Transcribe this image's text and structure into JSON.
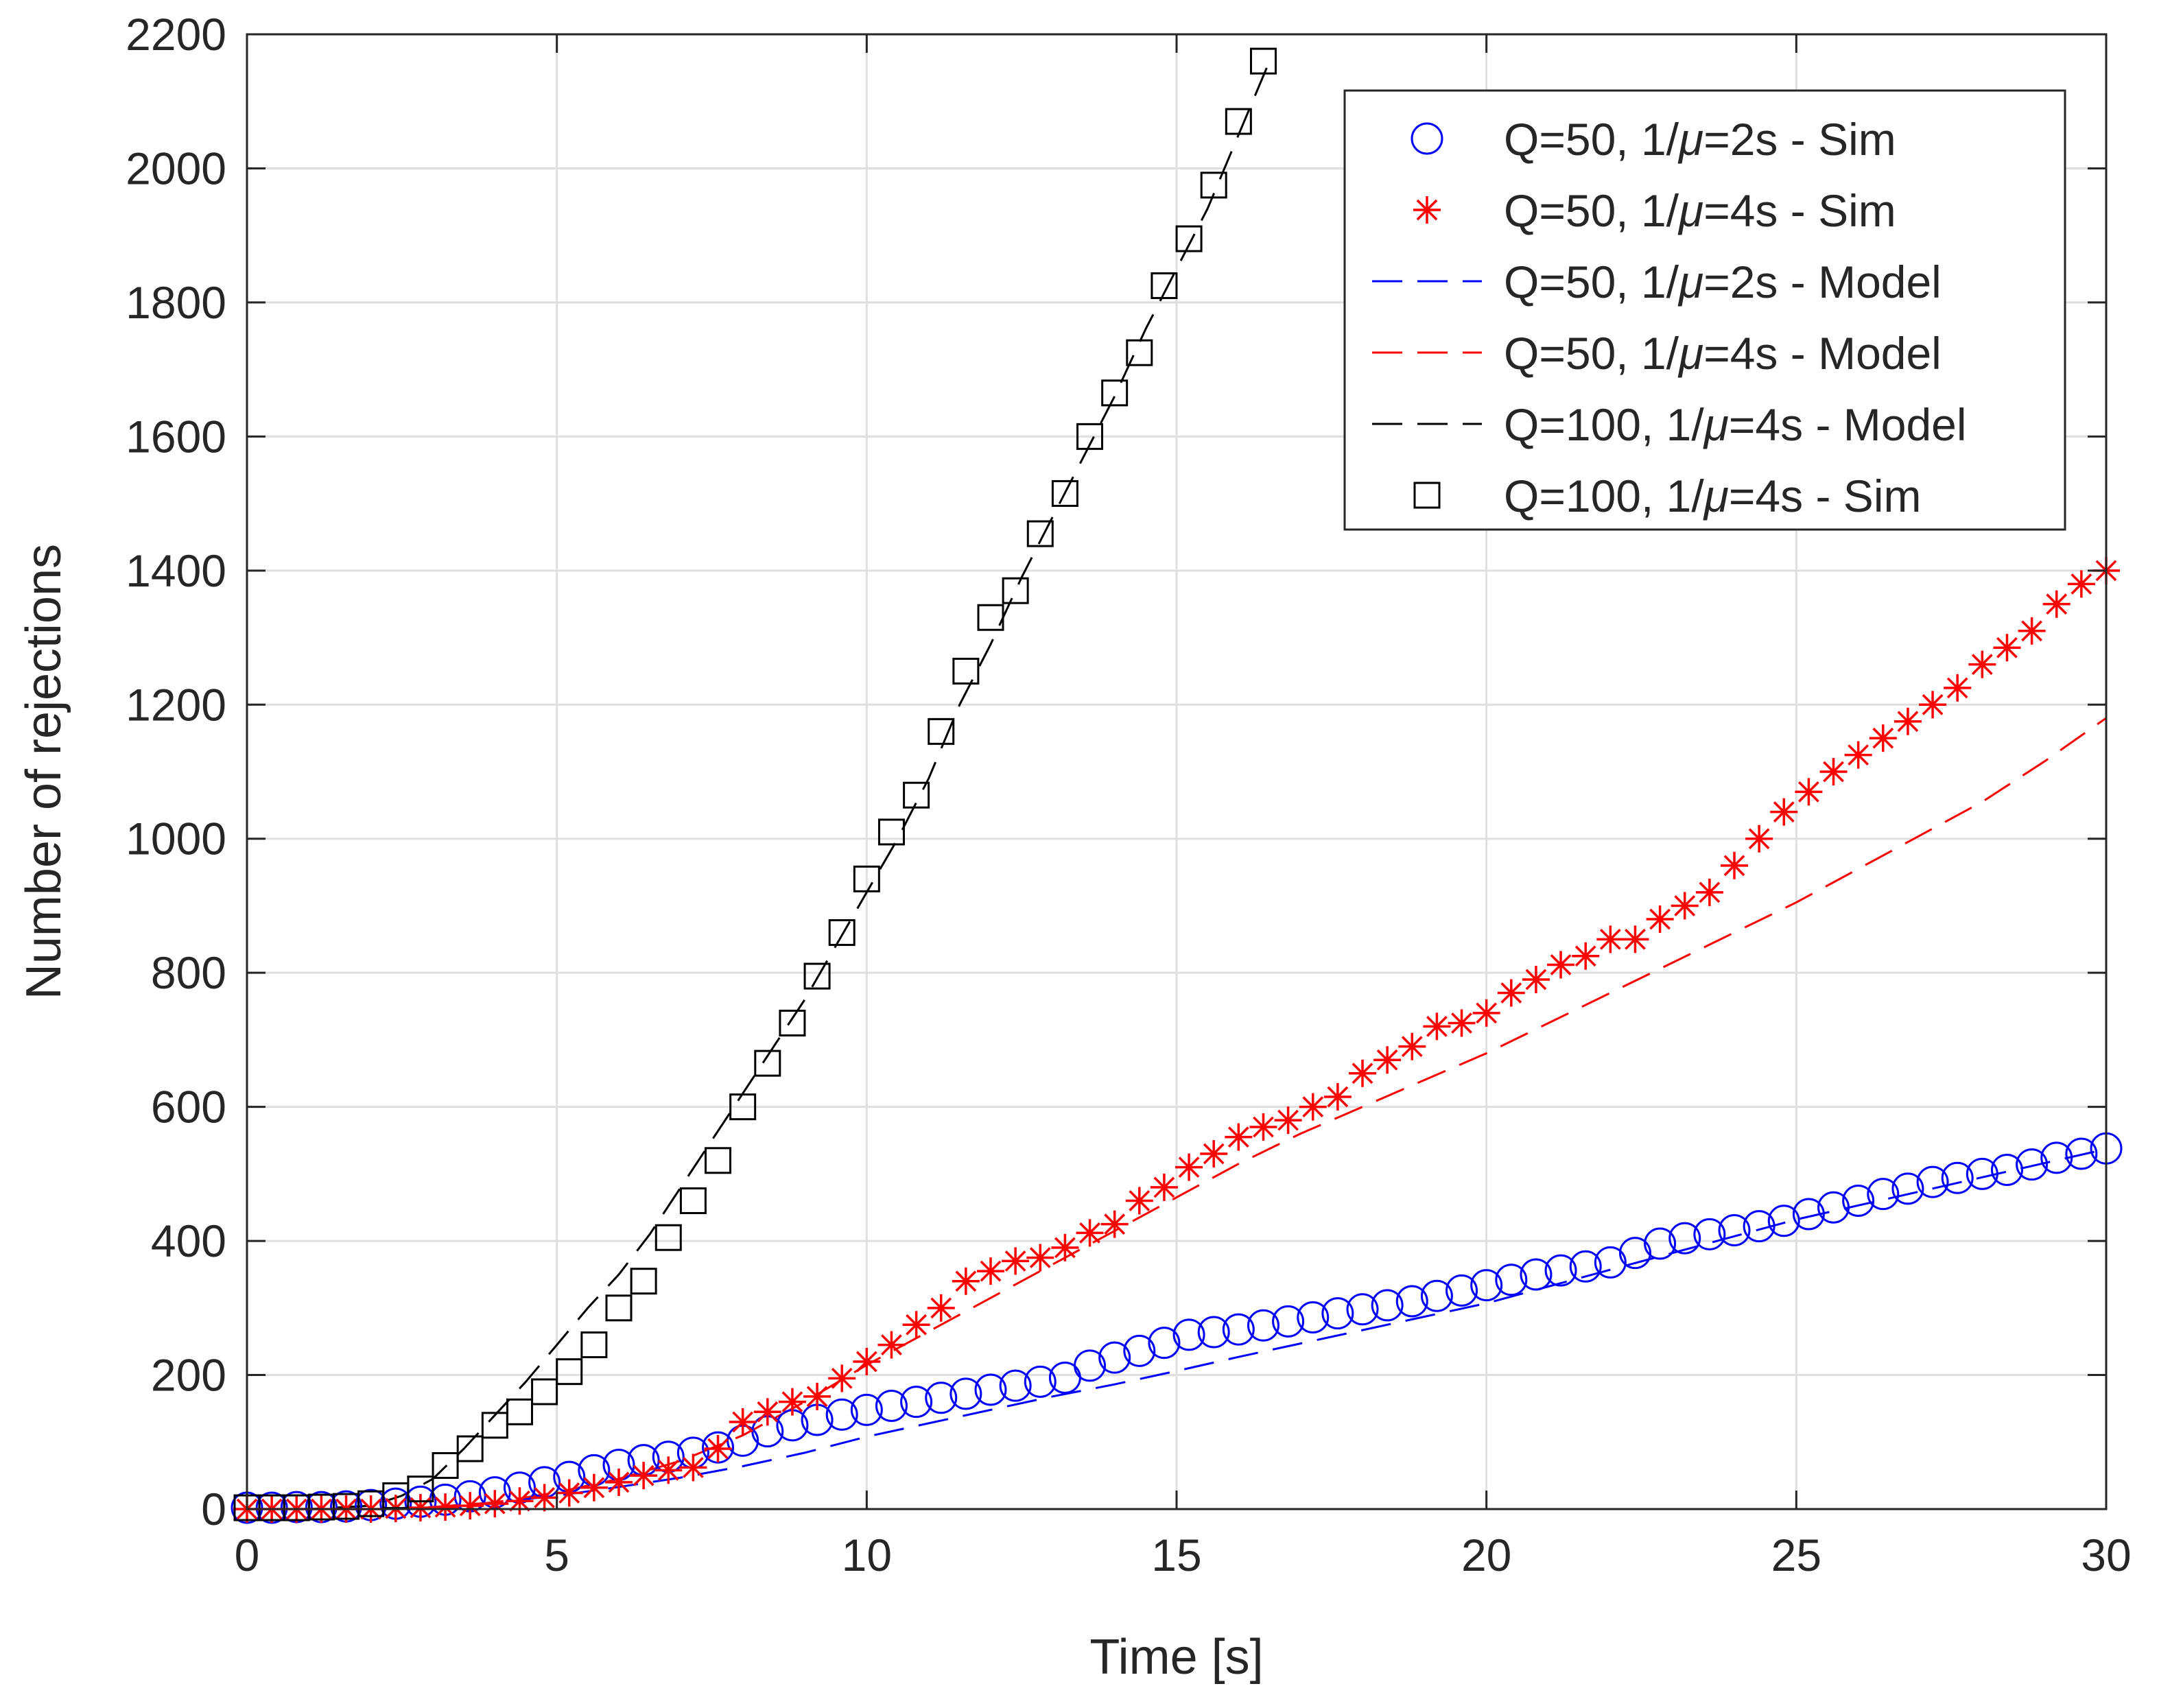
{
  "chart_data": {
    "type": "line",
    "title": "",
    "xlabel": "Time [s]",
    "ylabel": "Number of rejections",
    "xlim": [
      0,
      30
    ],
    "ylim": [
      0,
      2200
    ],
    "xticks": [
      0,
      5,
      10,
      15,
      20,
      25,
      30
    ],
    "yticks": [
      0,
      200,
      400,
      600,
      800,
      1000,
      1200,
      1400,
      1600,
      1800,
      2000,
      2200
    ],
    "grid": true,
    "legend_position": "top-right",
    "series": [
      {
        "name": "Q=50, 1/μ=2s - Sim",
        "label_prefix": "Q=50, 1/",
        "label_suffix": "=2s - Sim",
        "style": "circle",
        "color": "#0000ff",
        "x": [
          0,
          0.4,
          0.8,
          1.2,
          1.6,
          2.0,
          2.4,
          2.8,
          3.2,
          3.6,
          4.0,
          4.4,
          4.8,
          5.2,
          5.6,
          6.0,
          6.4,
          6.8,
          7.2,
          7.6,
          8.0,
          8.4,
          8.8,
          9.2,
          9.6,
          10.0,
          10.4,
          10.8,
          11.2,
          11.6,
          12.0,
          12.4,
          12.8,
          13.2,
          13.6,
          14.0,
          14.4,
          14.8,
          15.2,
          15.6,
          16.0,
          16.4,
          16.8,
          17.2,
          17.6,
          18.0,
          18.4,
          18.8,
          19.2,
          19.6,
          20.0,
          20.4,
          20.8,
          21.2,
          21.6,
          22.0,
          22.4,
          22.8,
          23.2,
          23.6,
          24.0,
          24.4,
          24.8,
          25.2,
          25.6,
          26.0,
          26.4,
          26.8,
          27.2,
          27.6,
          28.0,
          28.4,
          28.8,
          29.2,
          29.6,
          30.0
        ],
        "y": [
          2,
          2,
          3,
          3,
          4,
          6,
          8,
          11,
          14,
          19,
          25,
          32,
          40,
          48,
          58,
          66,
          73,
          78,
          84,
          92,
          102,
          116,
          125,
          133,
          141,
          148,
          154,
          160,
          166,
          172,
          178,
          184,
          190,
          196,
          214,
          226,
          236,
          248,
          260,
          264,
          268,
          274,
          280,
          286,
          292,
          298,
          304,
          310,
          318,
          326,
          334,
          342,
          350,
          356,
          362,
          368,
          382,
          396,
          404,
          410,
          416,
          422,
          430,
          440,
          450,
          460,
          470,
          478,
          488,
          494,
          500,
          506,
          514,
          524,
          530,
          538
        ]
      },
      {
        "name": "Q=50, 1/μ=4s - Sim",
        "label_prefix": "Q=50, 1/",
        "label_suffix": "=4s - Sim",
        "style": "asterisk",
        "color": "#ff0000",
        "x": [
          0,
          0.4,
          0.8,
          1.2,
          1.6,
          2.0,
          2.4,
          2.8,
          3.2,
          3.6,
          4.0,
          4.4,
          4.8,
          5.2,
          5.6,
          6.0,
          6.4,
          6.8,
          7.2,
          7.6,
          8.0,
          8.4,
          8.8,
          9.2,
          9.6,
          10.0,
          10.4,
          10.8,
          11.2,
          11.6,
          12.0,
          12.4,
          12.8,
          13.2,
          13.6,
          14.0,
          14.4,
          14.8,
          15.2,
          15.6,
          16.0,
          16.4,
          16.8,
          17.2,
          17.6,
          18.0,
          18.4,
          18.8,
          19.2,
          19.6,
          20.0,
          20.4,
          20.8,
          21.2,
          21.6,
          22.0,
          22.4,
          22.8,
          23.2,
          23.6,
          24.0,
          24.4,
          24.8,
          25.2,
          25.6,
          26.0,
          26.4,
          26.8,
          27.2,
          27.6,
          28.0,
          28.4,
          28.8,
          29.2,
          29.6,
          30.0
        ],
        "y": [
          0,
          0,
          0,
          0,
          0,
          0,
          1,
          2,
          3,
          5,
          8,
          12,
          17,
          24,
          32,
          40,
          50,
          58,
          62,
          90,
          130,
          145,
          160,
          168,
          195,
          220,
          245,
          275,
          300,
          340,
          355,
          370,
          375,
          390,
          412,
          425,
          460,
          480,
          510,
          530,
          555,
          570,
          580,
          600,
          615,
          650,
          670,
          690,
          720,
          725,
          740,
          770,
          790,
          812,
          825,
          850,
          850,
          880,
          900,
          920,
          960,
          1000,
          1040,
          1070,
          1100,
          1125,
          1150,
          1175,
          1200,
          1225,
          1260,
          1285,
          1310,
          1350,
          1380,
          1400
        ]
      },
      {
        "name": "Q=50, 1/μ=2s - Model",
        "label_prefix": "Q=50, 1/",
        "label_suffix": "=2s - Model",
        "style": "dashed",
        "color": "#0000ff",
        "x": [
          0,
          1,
          2,
          3,
          4,
          5,
          6,
          7,
          8,
          9,
          10,
          11,
          12,
          13,
          14,
          15,
          16,
          17,
          18,
          19,
          20,
          21,
          22,
          23,
          24,
          25,
          26,
          27,
          28,
          29,
          30
        ],
        "y": [
          0,
          0,
          0,
          3,
          10,
          20,
          33,
          47,
          64,
          84,
          108,
          128,
          148,
          168,
          186,
          206,
          227,
          247,
          267,
          287,
          307,
          332,
          357,
          382,
          407,
          432,
          453,
          474,
          495,
          516,
          537
        ]
      },
      {
        "name": "Q=50, 1/μ=4s - Model",
        "label_prefix": "Q=50, 1/",
        "label_suffix": "=4s - Model",
        "style": "dashed",
        "color": "#ff0000",
        "x": [
          0,
          1,
          2,
          3,
          4,
          5,
          6,
          7,
          8,
          9,
          10,
          11,
          12,
          13,
          14,
          15,
          16,
          17,
          18,
          19,
          20,
          21,
          22,
          23,
          24,
          25,
          26,
          27,
          28,
          29,
          30
        ],
        "y": [
          0,
          0,
          0,
          3,
          10,
          25,
          45,
          72,
          110,
          160,
          215,
          265,
          315,
          365,
          415,
          465,
          515,
          560,
          600,
          640,
          680,
          725,
          770,
          815,
          860,
          905,
          955,
          1005,
          1055,
          1115,
          1180
        ]
      },
      {
        "name": "Q=100, 1/μ=4s - Model",
        "label_prefix": "Q=100, 1/",
        "label_suffix": "=4s - Model",
        "style": "dashed",
        "color": "#000000",
        "x": [
          0,
          1,
          2,
          2.5,
          3,
          3.5,
          4,
          4.5,
          5,
          5.5,
          6,
          6.5,
          7,
          7.5,
          8,
          8.5,
          9,
          9.5,
          10,
          10.5,
          11,
          11.5,
          12,
          12.5,
          13,
          13.5,
          14,
          14.5,
          15,
          15.5,
          16,
          16.5
        ],
        "y": [
          0,
          0,
          5,
          20,
          45,
          90,
          140,
          190,
          245,
          300,
          350,
          410,
          480,
          550,
          620,
          690,
          760,
          840,
          920,
          1000,
          1090,
          1200,
          1290,
          1390,
          1480,
          1570,
          1660,
          1760,
          1850,
          1940,
          2050,
          2160
        ]
      },
      {
        "name": "Q=100, 1/μ=4s - Sim",
        "label_prefix": "Q=100, 1/",
        "label_suffix": "=4s - Sim",
        "style": "square",
        "color": "#000000",
        "x": [
          0,
          0.4,
          0.8,
          1.2,
          1.6,
          2.0,
          2.4,
          2.8,
          3.2,
          3.6,
          4.0,
          4.4,
          4.8,
          5.2,
          5.6,
          6.0,
          6.4,
          6.8,
          7.2,
          7.6,
          8.0,
          8.4,
          8.8,
          9.2,
          9.6,
          10.0,
          10.4,
          10.8,
          11.2,
          11.6,
          12.0,
          12.4,
          12.8,
          13.2,
          13.6,
          14.0,
          14.4,
          14.8,
          15.2,
          15.6,
          16.0,
          16.4
        ],
        "y": [
          2,
          2,
          2,
          3,
          4,
          8,
          20,
          30,
          65,
          90,
          125,
          145,
          175,
          205,
          245,
          300,
          340,
          405,
          460,
          520,
          600,
          665,
          725,
          795,
          860,
          940,
          1010,
          1065,
          1160,
          1250,
          1330,
          1370,
          1455,
          1515,
          1600,
          1665,
          1725,
          1825,
          1895,
          1975,
          2070,
          2160
        ]
      }
    ]
  },
  "legend": {
    "mu_symbol": "μ"
  }
}
